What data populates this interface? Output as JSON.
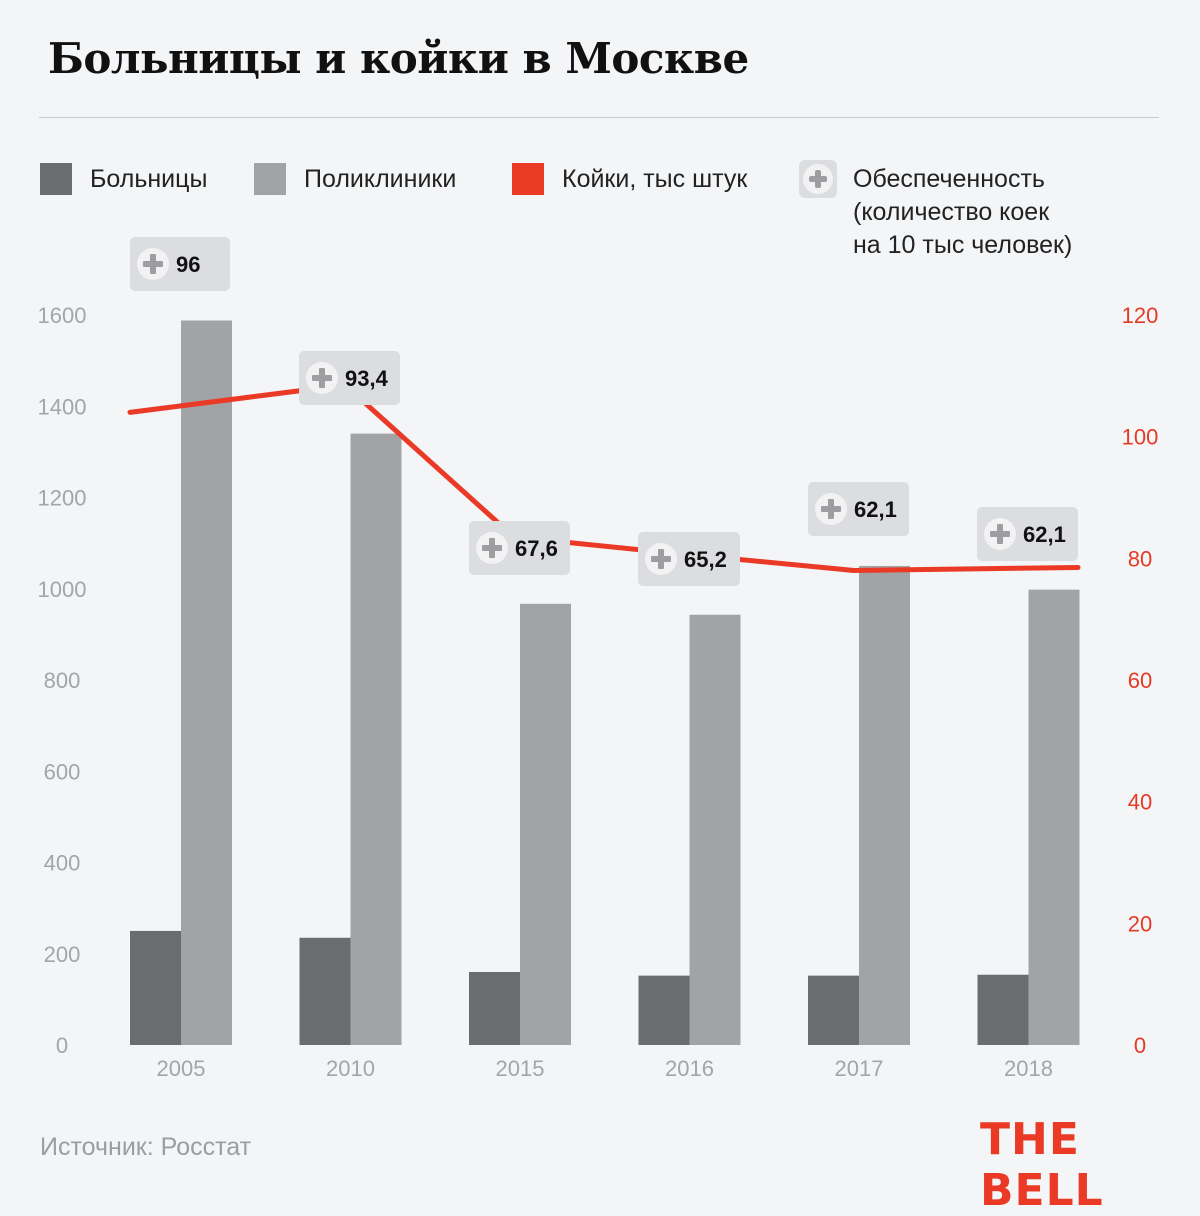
{
  "title": "Больницы и койки в Москве",
  "legend": {
    "hospitals": "Больницы",
    "clinics": "Поликлиники",
    "beds": "Койки, тыс штук",
    "coverage": "Обеспеченность\n(количество коек\nна 10 тыс человек)"
  },
  "source": "Источник: Росстат",
  "brand": "THE BELL",
  "colors": {
    "hospitals": "#6b6c6f",
    "clinics": "#a2a3a6",
    "beds": "#ea3a25",
    "background": "#f4f5f7"
  },
  "chart_data": {
    "type": "bar",
    "categories": [
      "2005",
      "2010",
      "2015",
      "2016",
      "2017",
      "2018"
    ],
    "series": [
      {
        "name": "Больницы",
        "type": "bar",
        "axis": "left",
        "values": [
          250,
          235,
          160,
          152,
          152,
          154
        ]
      },
      {
        "name": "Поликлиники",
        "type": "bar",
        "axis": "left",
        "values": [
          1588,
          1340,
          967,
          943,
          1050,
          998
        ]
      },
      {
        "name": "Койки, тыс штук",
        "type": "line",
        "axis": "right",
        "values": [
          104,
          108.5,
          83.5,
          80.7,
          78,
          78.5
        ]
      }
    ],
    "coverage_labels": [
      "96",
      "93,4",
      "67,6",
      "65,2",
      "62,1",
      "62,1"
    ],
    "y_left": {
      "min": 0,
      "max": 1600,
      "ticks": [
        "0",
        "200",
        "400",
        "600",
        "800",
        "1000",
        "1200",
        "1400",
        "1600"
      ]
    },
    "y_right": {
      "min": 0,
      "max": 120,
      "ticks": [
        "0",
        "20",
        "40",
        "60",
        "80",
        "100",
        "120"
      ]
    },
    "grid": false,
    "legend_position": "top"
  }
}
